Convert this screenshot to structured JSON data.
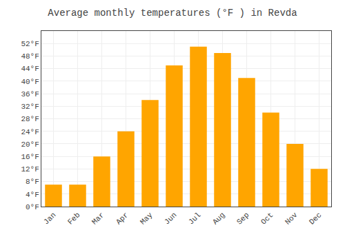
{
  "chart_data": {
    "type": "bar",
    "title": "Average monthly temperatures (°F ) in Revda",
    "categories": [
      "Jan",
      "Feb",
      "Mar",
      "Apr",
      "May",
      "Jun",
      "Jul",
      "Aug",
      "Sep",
      "Oct",
      "Nov",
      "Dec"
    ],
    "values": [
      7,
      7,
      16,
      24,
      34,
      45,
      51,
      49,
      41,
      30,
      20,
      12
    ],
    "color": "#FFA500",
    "ylim": [
      0,
      56
    ],
    "yticks": [
      {
        "value": 0,
        "label": "0°F"
      },
      {
        "value": 4,
        "label": "4°F"
      },
      {
        "value": 8,
        "label": "8°F"
      },
      {
        "value": 12,
        "label": "12°F"
      },
      {
        "value": 16,
        "label": "16°F"
      },
      {
        "value": 20,
        "label": "20°F"
      },
      {
        "value": 24,
        "label": "24°F"
      },
      {
        "value": 28,
        "label": "28°F"
      },
      {
        "value": 32,
        "label": "32°F"
      },
      {
        "value": 36,
        "label": "36°F"
      },
      {
        "value": 40,
        "label": "40°F"
      },
      {
        "value": 44,
        "label": "44°F"
      },
      {
        "value": 48,
        "label": "48°F"
      },
      {
        "value": 52,
        "label": "52°F"
      }
    ],
    "grid": true
  }
}
